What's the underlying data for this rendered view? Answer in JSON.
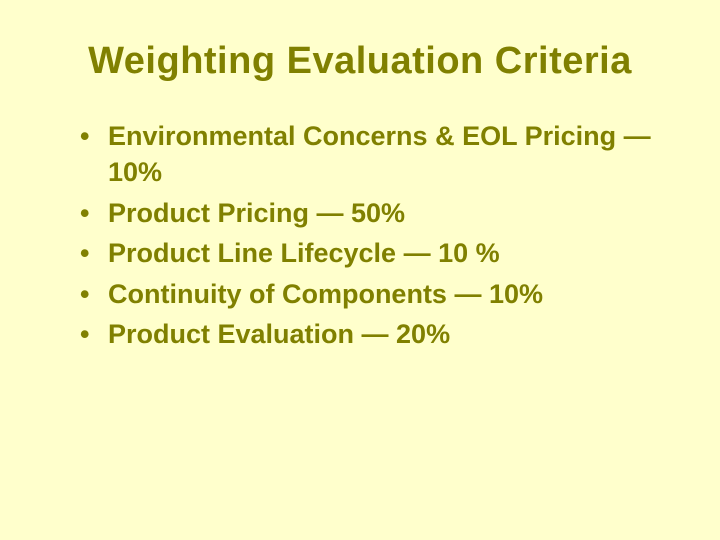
{
  "slide": {
    "background_color": "#ffffcc",
    "text_color": "#808000",
    "title": "Weighting Evaluation Criteria",
    "title_fontsize": 38,
    "title_fontweight": "bold",
    "bullet_fontsize": 27,
    "bullet_fontweight": "bold",
    "bullets": [
      "Environmental Concerns & EOL Pricing — 10%",
      "Product Pricing — 50%",
      "Product Line Lifecycle — 10 %",
      "Continuity of  Components — 10%",
      "Product Evaluation  — 20%"
    ]
  }
}
